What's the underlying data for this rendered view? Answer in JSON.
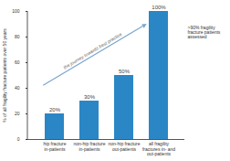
{
  "chart_data": {
    "type": "bar",
    "categories": [
      "hip fracture\nin-patients",
      "non-hip fracture\nin-patients",
      "non-hip fracture\nout-patients",
      "all fragility\nfractures in- and\nout-patients"
    ],
    "values": [
      20,
      30,
      50,
      100
    ],
    "value_labels": [
      "20%",
      "30%",
      "50%",
      "100%"
    ],
    "data_labels": true,
    "color": "#2b86c5",
    "ylabel": "% of all fragility fracture patients over 50 years",
    "ylim": [
      0,
      100
    ],
    "yticks": [
      0,
      20,
      40,
      60,
      80,
      100
    ],
    "grid": false,
    "annotations": [
      "the journey towards best practice",
      ">90% fragility\nfracture patients\nassessed"
    ]
  }
}
